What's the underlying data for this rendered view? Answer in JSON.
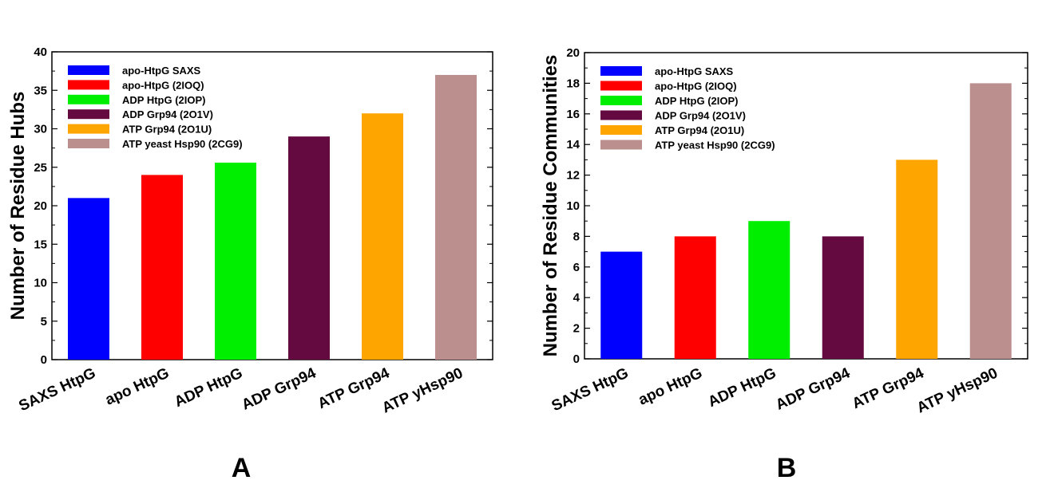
{
  "chart_data": [
    {
      "type": "bar",
      "panel_label": "A",
      "ylabel": "Number of Residue Hubs",
      "xlabel": "",
      "ylim": [
        0,
        40
      ],
      "yticks": [
        0,
        5,
        10,
        15,
        20,
        25,
        30,
        35,
        40
      ],
      "categories": [
        "SAXS HtpG",
        "apo HtpG",
        "ADP HtpG",
        "ADP Grp94",
        "ATP Grp94",
        "ATP yHsp90"
      ],
      "values": [
        21,
        24,
        25.6,
        29,
        32,
        37
      ],
      "colors": [
        "#0000ff",
        "#ff0000",
        "#00ee00",
        "#650a40",
        "#ffa500",
        "#bc8f8f"
      ],
      "legend": [
        "apo-HtpG SAXS",
        "apo-HtpG (2IOQ)",
        "ADP HtpG (2IOP)",
        "ADP Grp94 (2O1V)",
        "ATP Grp94 (2O1U)",
        "ATP yeast Hsp90 (2CG9)"
      ],
      "legend_position": "top-left",
      "grid": false
    },
    {
      "type": "bar",
      "panel_label": "B",
      "ylabel": "Number of Residue Communities",
      "xlabel": "",
      "ylim": [
        0,
        20
      ],
      "yticks": [
        0,
        2,
        4,
        6,
        8,
        10,
        12,
        14,
        16,
        18,
        20
      ],
      "categories": [
        "SAXS HtpG",
        "apo HtpG",
        "ADP HtpG",
        "ADP Grp94",
        "ATP Grp94",
        "ATP yHsp90"
      ],
      "values": [
        7,
        8,
        9,
        8,
        13,
        18
      ],
      "colors": [
        "#0000ff",
        "#ff0000",
        "#00ee00",
        "#650a40",
        "#ffa500",
        "#bc8f8f"
      ],
      "legend": [
        "apo-HtpG SAXS",
        "apo-HtpG (2IOQ)",
        "ADP HtpG (2IOP)",
        "ADP Grp94 (2O1V)",
        "ATP Grp94 (2O1U)",
        "ATP yeast Hsp90 (2CG9)"
      ],
      "legend_position": "top-left",
      "grid": false
    }
  ]
}
